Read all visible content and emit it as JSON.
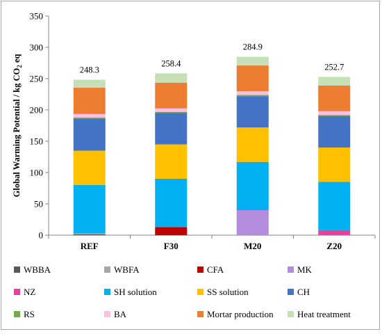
{
  "chart_data": {
    "type": "bar",
    "stacked": true,
    "categories": [
      "REF",
      "F30",
      "M20",
      "Z20"
    ],
    "ylabel": "Global Warming Potential / kg CO₂ eq",
    "ylim": [
      0,
      350
    ],
    "yticks": [
      0,
      50,
      100,
      150,
      200,
      250,
      300,
      350
    ],
    "grid": false,
    "legend_position": "bottom",
    "totals": [
      "248.3",
      "258.4",
      "284.9",
      "252.7"
    ],
    "series": [
      {
        "name": "WBBA",
        "color": "#595959",
        "values": [
          1.5,
          0,
          0,
          0
        ]
      },
      {
        "name": "WBFA",
        "color": "#a6a6a6",
        "values": [
          1.5,
          0,
          0,
          0
        ]
      },
      {
        "name": "CFA",
        "color": "#c00000",
        "values": [
          0,
          13,
          0,
          0
        ]
      },
      {
        "name": "MK",
        "color": "#b48cdc",
        "values": [
          0,
          0,
          40,
          0
        ]
      },
      {
        "name": "NZ",
        "color": "#e8409c",
        "values": [
          0,
          0,
          0,
          8
        ]
      },
      {
        "name": "SH solution",
        "color": "#00b0f0",
        "values": [
          77,
          77,
          77,
          77
        ]
      },
      {
        "name": "SS solution",
        "color": "#ffc000",
        "values": [
          55,
          55,
          55,
          55
        ]
      },
      {
        "name": "CH",
        "color": "#4472c4",
        "values": [
          51,
          50,
          50,
          50
        ]
      },
      {
        "name": "RS",
        "color": "#70ad47",
        "values": [
          2,
          2,
          2,
          2
        ]
      },
      {
        "name": "BA",
        "color": "#ffc0e0",
        "values": [
          5.5,
          5.5,
          6,
          6
        ]
      },
      {
        "name": "Mortar production",
        "color": "#ed7d31",
        "values": [
          42,
          41,
          41,
          41
        ]
      },
      {
        "name": "Heat treatment",
        "color": "#c5e0b4",
        "values": [
          12.8,
          14.9,
          13.9,
          13.7
        ]
      }
    ]
  }
}
